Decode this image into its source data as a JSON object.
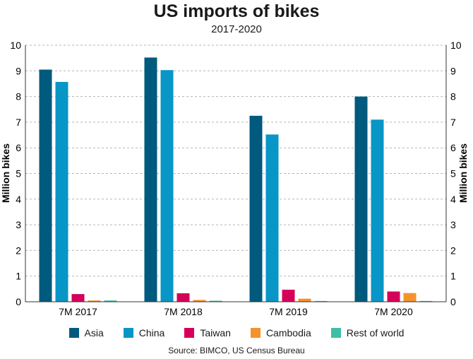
{
  "chart_data": {
    "type": "bar",
    "title": "US imports of bikes",
    "subtitle": "2017-2020",
    "ylabel": "Million bikes",
    "ylim": [
      0,
      10
    ],
    "yticks": [
      0,
      1,
      2,
      3,
      4,
      5,
      6,
      7,
      8,
      9,
      10
    ],
    "grid": true,
    "legend_position": "bottom",
    "categories": [
      "7M 2017",
      "7M 2018",
      "7M 2019",
      "7M 2020"
    ],
    "series": [
      {
        "name": "Asia",
        "color": "#005a7d",
        "values": [
          9.05,
          9.52,
          7.25,
          8.0
        ]
      },
      {
        "name": "China",
        "color": "#0796c6",
        "values": [
          8.57,
          9.03,
          6.52,
          7.1
        ]
      },
      {
        "name": "Taiwan",
        "color": "#d4005a",
        "values": [
          0.3,
          0.33,
          0.47,
          0.4
        ]
      },
      {
        "name": "Cambodia",
        "color": "#f5922b",
        "values": [
          0.05,
          0.07,
          0.12,
          0.34
        ]
      },
      {
        "name": "Rest of world",
        "color": "#3dbfa5",
        "values": [
          0.05,
          0.04,
          0.03,
          0.03
        ]
      }
    ],
    "source": "Source: BIMCO, US Census Bureau"
  }
}
